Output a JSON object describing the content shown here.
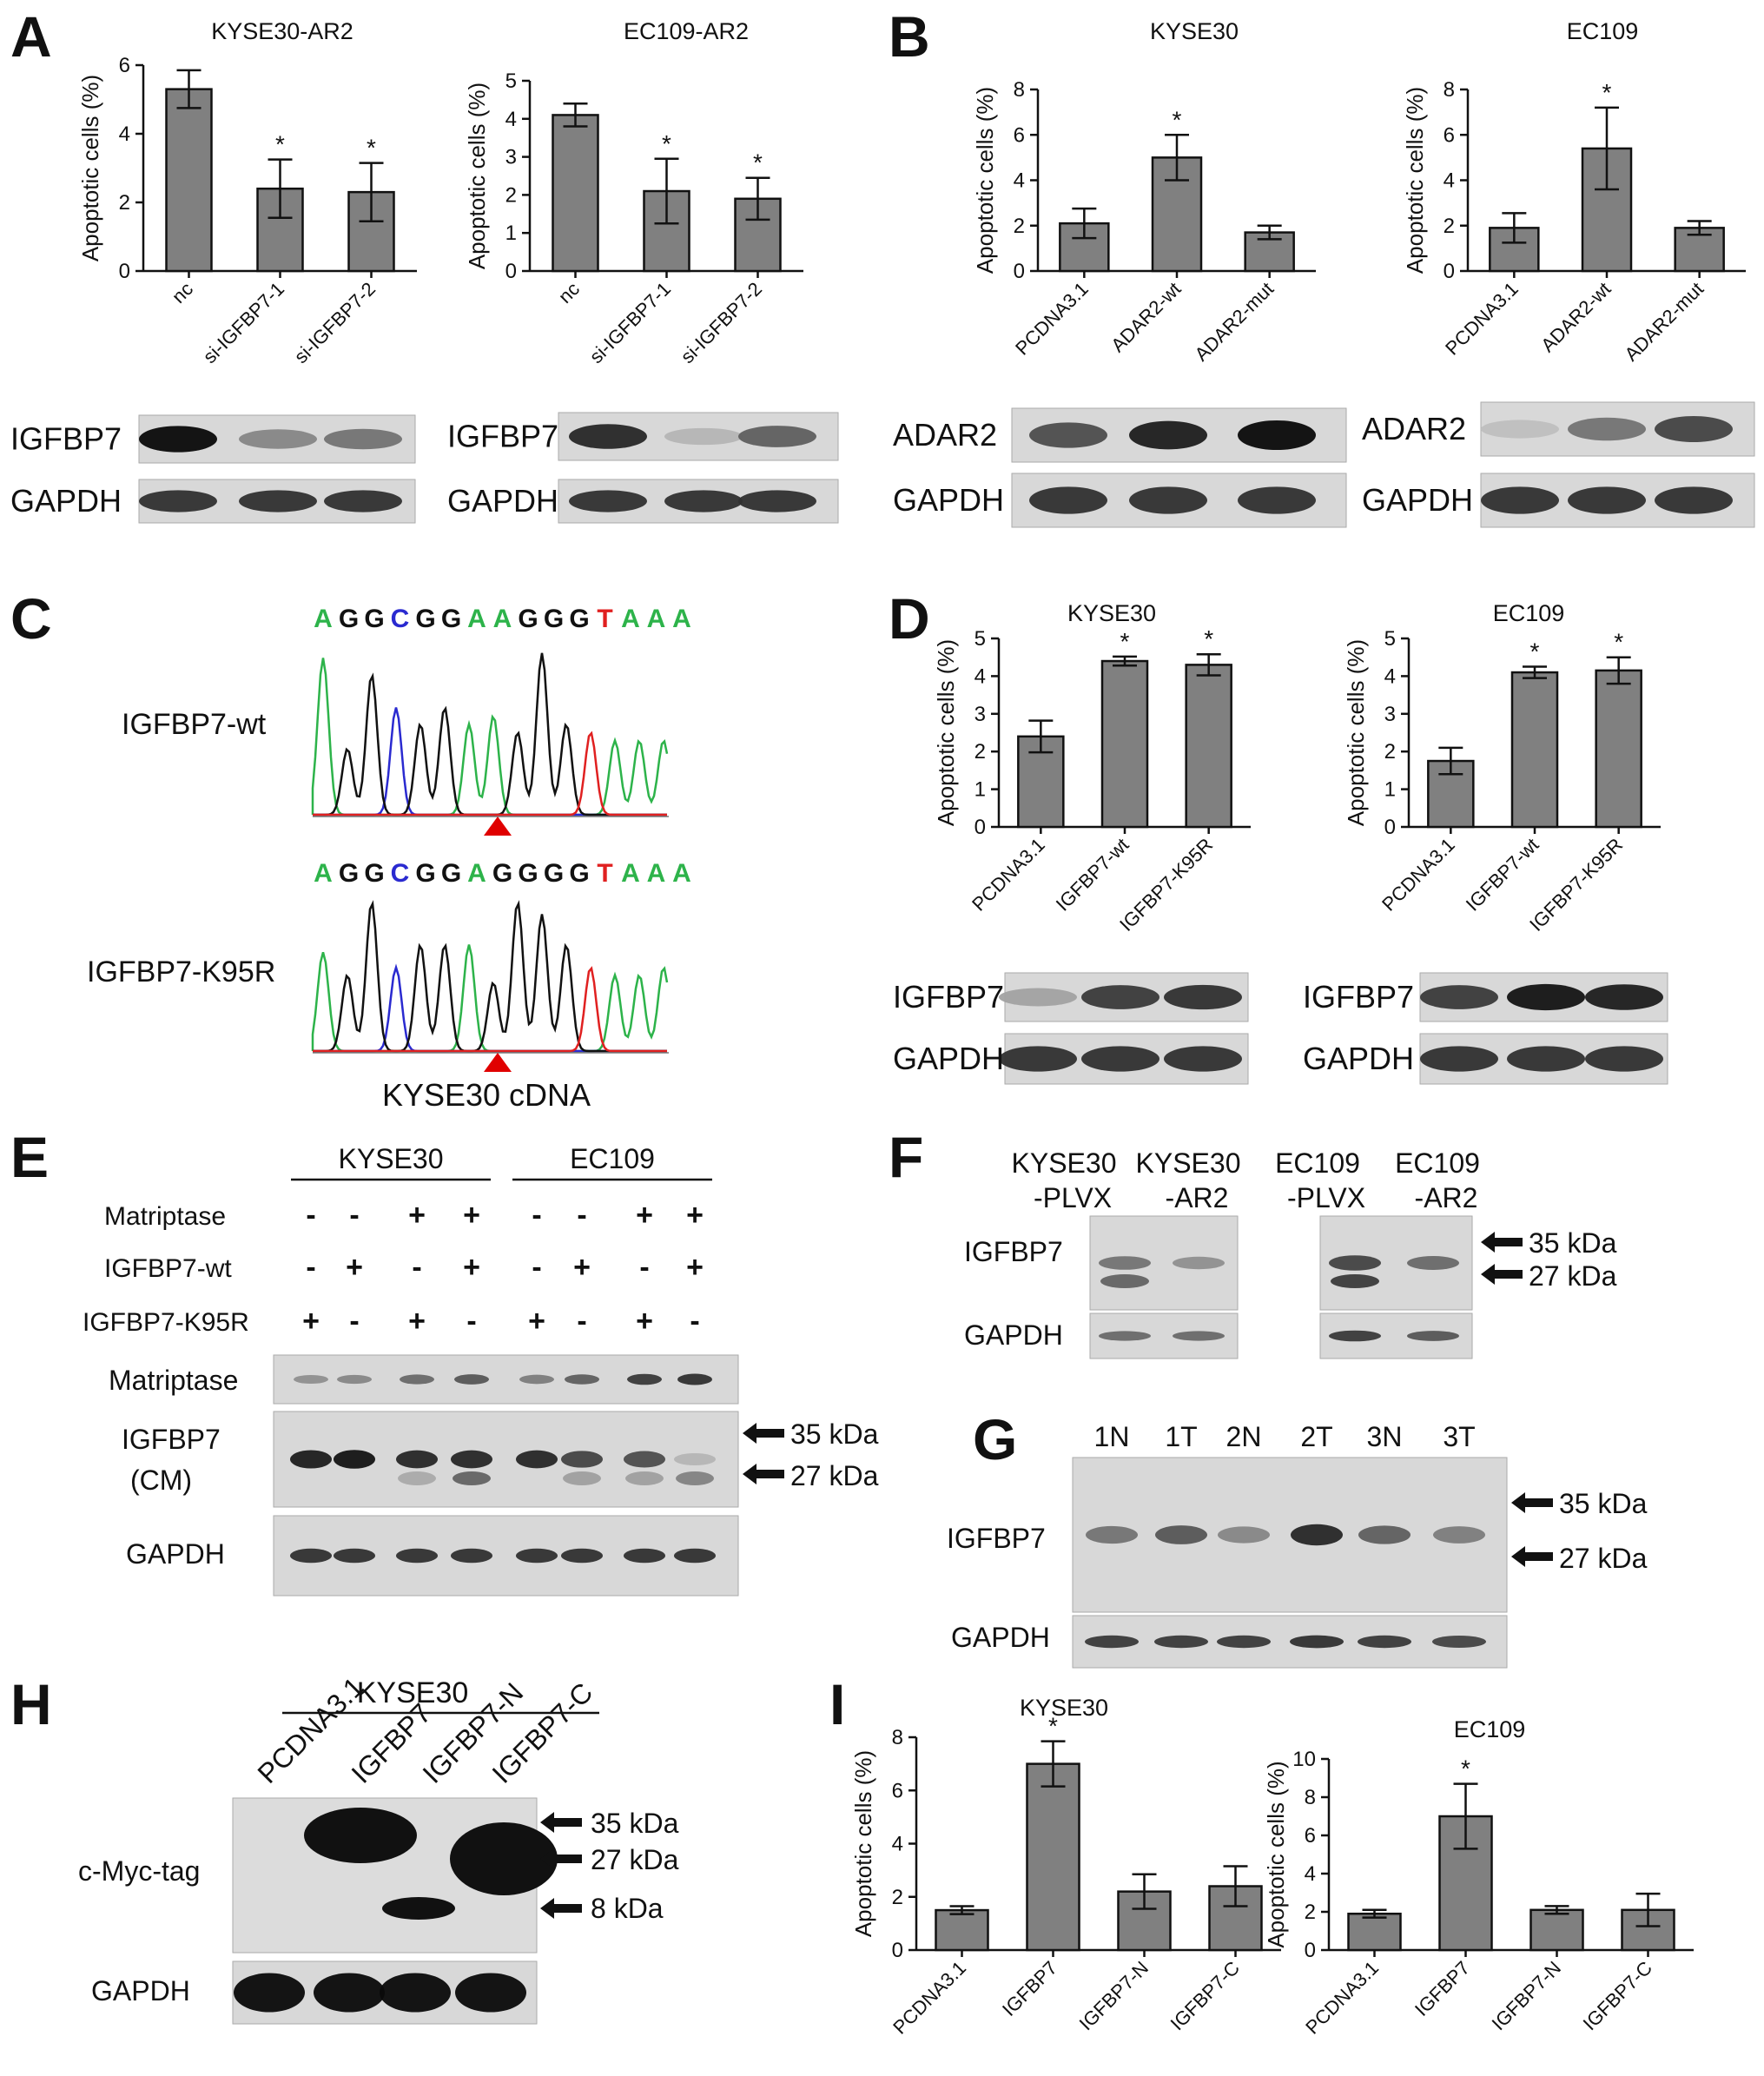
{
  "panel_labels": [
    "A",
    "B",
    "C",
    "D",
    "E",
    "F",
    "G",
    "H",
    "I"
  ],
  "chart_data": [
    {
      "id": "A1",
      "type": "bar",
      "title": "KYSE30-AR2",
      "ylabel": "Apoptotic cells (%)",
      "categories": [
        "nc",
        "si-IGFBP7-1",
        "si-IGFBP7-2"
      ],
      "values": [
        5.3,
        2.4,
        2.3
      ],
      "errors": [
        0.55,
        0.85,
        0.85
      ],
      "sig": [
        "",
        "*",
        "*"
      ],
      "ylim": [
        0,
        6
      ],
      "yticks": [
        0,
        2,
        4,
        6
      ]
    },
    {
      "id": "A2",
      "type": "bar",
      "title": "EC109-AR2",
      "ylabel": "Apoptotic cells (%)",
      "categories": [
        "nc",
        "si-IGFBP7-1",
        "si-IGFBP7-2"
      ],
      "values": [
        4.1,
        2.1,
        1.9
      ],
      "errors": [
        0.3,
        0.85,
        0.55
      ],
      "sig": [
        "",
        "*",
        "*"
      ],
      "ylim": [
        0,
        5
      ],
      "yticks": [
        0,
        1,
        2,
        3,
        4,
        5
      ]
    },
    {
      "id": "B1",
      "type": "bar",
      "title": "KYSE30",
      "ylabel": "Apoptotic cells (%)",
      "categories": [
        "PCDNA3.1",
        "ADAR2-wt",
        "ADAR2-mut"
      ],
      "values": [
        2.1,
        5.0,
        1.7
      ],
      "errors": [
        0.65,
        1.0,
        0.3
      ],
      "sig": [
        "",
        "*",
        ""
      ],
      "ylim": [
        0,
        8
      ],
      "yticks": [
        0,
        2,
        4,
        6,
        8
      ]
    },
    {
      "id": "B2",
      "type": "bar",
      "title": "EC109",
      "ylabel": "Apoptotic cells (%)",
      "categories": [
        "PCDNA3.1",
        "ADAR2-wt",
        "ADAR2-mut"
      ],
      "values": [
        1.9,
        5.4,
        1.9
      ],
      "errors": [
        0.65,
        1.8,
        0.3
      ],
      "sig": [
        "",
        "*",
        ""
      ],
      "ylim": [
        0,
        8
      ],
      "yticks": [
        0,
        2,
        4,
        6,
        8
      ]
    },
    {
      "id": "D1",
      "type": "bar",
      "title": "KYSE30",
      "ylabel": "Apoptotic cells (%)",
      "categories": [
        "PCDNA3.1",
        "IGFBP7-wt",
        "IGFBP7-K95R"
      ],
      "values": [
        2.4,
        4.4,
        4.3
      ],
      "errors": [
        0.42,
        0.12,
        0.28
      ],
      "sig": [
        "",
        "*",
        "*"
      ],
      "ylim": [
        0,
        5
      ],
      "yticks": [
        0,
        1,
        2,
        3,
        4,
        5
      ]
    },
    {
      "id": "D2",
      "type": "bar",
      "title": "EC109",
      "ylabel": "Apoptotic cells (%)",
      "categories": [
        "PCDNA3.1",
        "IGFBP7-wt",
        "IGFBP7-K95R"
      ],
      "values": [
        1.75,
        4.1,
        4.15
      ],
      "errors": [
        0.35,
        0.15,
        0.35
      ],
      "sig": [
        "",
        "*",
        "*"
      ],
      "ylim": [
        0,
        5
      ],
      "yticks": [
        0,
        1,
        2,
        3,
        4,
        5
      ]
    },
    {
      "id": "I1",
      "type": "bar",
      "title": "KYSE30",
      "ylabel": "Apoptotic cells (%)",
      "categories": [
        "PCDNA3.1",
        "IGFBP7",
        "IGFBP7-N",
        "IGFBP7-C"
      ],
      "values": [
        1.5,
        7.0,
        2.2,
        2.4
      ],
      "errors": [
        0.15,
        0.85,
        0.65,
        0.75
      ],
      "sig": [
        "",
        "*",
        "",
        ""
      ],
      "ylim": [
        0,
        8
      ],
      "yticks": [
        0,
        2,
        4,
        6,
        8
      ]
    },
    {
      "id": "I2",
      "type": "bar",
      "title": "EC109",
      "ylabel": "Apoptotic cells (%)",
      "categories": [
        "PCDNA3.1",
        "IGFBP7",
        "IGFBP7-N",
        "IGFBP7-C"
      ],
      "values": [
        1.9,
        7.0,
        2.1,
        2.1
      ],
      "errors": [
        0.2,
        1.7,
        0.2,
        0.85
      ],
      "sig": [
        "",
        "*",
        "",
        ""
      ],
      "ylim": [
        0,
        10
      ],
      "yticks": [
        0,
        2,
        4,
        6,
        8,
        10
      ]
    }
  ],
  "western_blots": {
    "A1": {
      "rows": [
        "IGFBP7",
        "GAPDH"
      ]
    },
    "A2": {
      "rows": [
        "IGFBP7",
        "GAPDH"
      ]
    },
    "B1": {
      "rows": [
        "ADAR2",
        "GAPDH"
      ]
    },
    "B2": {
      "rows": [
        "ADAR2",
        "GAPDH"
      ]
    },
    "D1": {
      "rows": [
        "IGFBP7",
        "GAPDH"
      ]
    },
    "D2": {
      "rows": [
        "IGFBP7",
        "GAPDH"
      ]
    }
  },
  "panel_C": {
    "seq_wt": [
      "A",
      "G",
      "G",
      "C",
      "G",
      "G",
      "A",
      "A",
      "G",
      "G",
      "G",
      "T",
      "A",
      "A",
      "A"
    ],
    "seq_mut": [
      "A",
      "G",
      "G",
      "C",
      "G",
      "G",
      "A",
      "G",
      "G",
      "G",
      "G",
      "T",
      "A",
      "A",
      "A"
    ],
    "label_wt": "IGFBP7-wt",
    "label_mut": "IGFBP7-K95R",
    "caption": "KYSE30 cDNA"
  },
  "panel_E": {
    "groups": [
      "KYSE30",
      "EC109"
    ],
    "conditions": [
      {
        "name": "Matriptase",
        "signs": [
          "-",
          "-",
          "+",
          "+",
          "-",
          "-",
          "+",
          "+"
        ]
      },
      {
        "name": "IGFBP7-wt",
        "signs": [
          "-",
          "+",
          "-",
          "+",
          "-",
          "+",
          "-",
          "+"
        ]
      },
      {
        "name": "IGFBP7-K95R",
        "signs": [
          "+",
          "-",
          "+",
          "-",
          "+",
          "-",
          "+",
          "-"
        ]
      }
    ],
    "blot_rows": [
      "Matriptase",
      "IGFBP7",
      "(CM)",
      "GAPDH"
    ],
    "markers": [
      "35 kDa",
      "27 kDa"
    ]
  },
  "panel_F": {
    "lane_labels_top": [
      "KYSE30",
      "KYSE30",
      "EC109",
      "EC109"
    ],
    "lane_labels_bottom": [
      "-PLVX",
      "-AR2",
      "-PLVX",
      "-AR2"
    ],
    "rows": [
      "IGFBP7",
      "GAPDH"
    ],
    "markers": [
      "35 kDa",
      "27 kDa"
    ]
  },
  "panel_G": {
    "lanes": [
      "1N",
      "1T",
      "2N",
      "2T",
      "3N",
      "3T"
    ],
    "rows": [
      "IGFBP7",
      "GAPDH"
    ],
    "markers": [
      "35 kDa",
      "27 kDa"
    ]
  },
  "panel_H": {
    "group": "KYSE30",
    "lanes": [
      "PCDNA3.1",
      "IGFBP7",
      "IGFBP7-N",
      "IGFBP7-C"
    ],
    "rows": [
      "c-Myc-tag",
      "GAPDH"
    ],
    "markers": [
      "35 kDa",
      "27 kDa",
      "8 kDa"
    ]
  }
}
